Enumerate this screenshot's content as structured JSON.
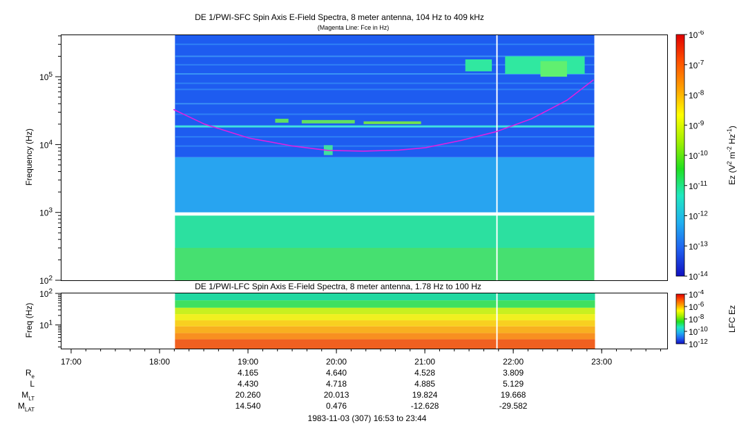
{
  "chart_data": [
    {
      "type": "heatmap",
      "title": "DE 1/PWI-SFC  Spin Axis E-Field Spectra, 8 meter antenna, 104 Hz to 409 kHz",
      "subtitle": "(Magenta Line: Fce in Hz)",
      "ylabel": "Frequency (Hz)",
      "y_scale": "log",
      "ylim": [
        100,
        409000
      ],
      "y_ticks": [
        "10^2",
        "10^3",
        "10^4",
        "10^5"
      ],
      "data_x_range": [
        "18:10",
        "22:55"
      ],
      "colorbar": {
        "label": "Ez (V^2 m^-2 Hz^-1)",
        "scale": "log",
        "range": [
          1e-14,
          1e-06
        ],
        "ticks": [
          "10^-6",
          "10^-7",
          "10^-8",
          "10^-9",
          "10^-10",
          "10^-11",
          "10^-12",
          "10^-13",
          "10^-14"
        ]
      },
      "fce_line": {
        "color": "#e020e0",
        "time_hours": [
          18.15,
          18.5,
          19.0,
          19.5,
          19.9,
          20.3,
          20.7,
          21.0,
          21.4,
          21.8,
          22.2,
          22.6,
          22.9
        ],
        "frequency_hz": [
          33000,
          20000,
          12500,
          9500,
          8200,
          8000,
          8300,
          9000,
          11500,
          15500,
          24000,
          45000,
          90000
        ]
      }
    },
    {
      "type": "heatmap",
      "title": "DE 1/PWI-LFC  Spin Axis E-Field Spectra, 8 meter antenna, 1.78 Hz to 100 Hz",
      "ylabel": "Freq (Hz)",
      "y_scale": "log",
      "ylim": [
        1.78,
        100
      ],
      "y_ticks": [
        "10^1",
        "10^2"
      ],
      "data_x_range": [
        "18:10",
        "22:55"
      ],
      "colorbar": {
        "label": "LFC Ez",
        "scale": "log",
        "range": [
          1e-12,
          0.0001
        ],
        "ticks": [
          "10^-4",
          "10^-6",
          "10^-8",
          "10^-10",
          "10^-12"
        ]
      }
    }
  ],
  "x_axis": {
    "ticks": [
      "17:00",
      "18:00",
      "19:00",
      "20:00",
      "21:00",
      "22:00",
      "23:00"
    ],
    "tick_hours": [
      17,
      18,
      19,
      20,
      21,
      22,
      23
    ],
    "xlim_hours": [
      16.883,
      23.733
    ]
  },
  "ephemeris": {
    "rows": [
      {
        "label": "R",
        "sub": "e",
        "values": [
          "4.165",
          "4.640",
          "4.528",
          "3.809"
        ]
      },
      {
        "label": "L",
        "sub": "",
        "values": [
          "4.430",
          "4.718",
          "4.885",
          "5.129"
        ]
      },
      {
        "label": "M",
        "sub": "LT",
        "values": [
          "20.260",
          "20.013",
          "19.824",
          "19.668"
        ]
      },
      {
        "label": "M",
        "sub": "LAT",
        "values": [
          "14.540",
          "0.476",
          "-12.628",
          "-29.582"
        ]
      }
    ],
    "value_hours": [
      19,
      20,
      21,
      22
    ]
  },
  "footer": "1983-11-03 (307) 16:53 to 23:44"
}
